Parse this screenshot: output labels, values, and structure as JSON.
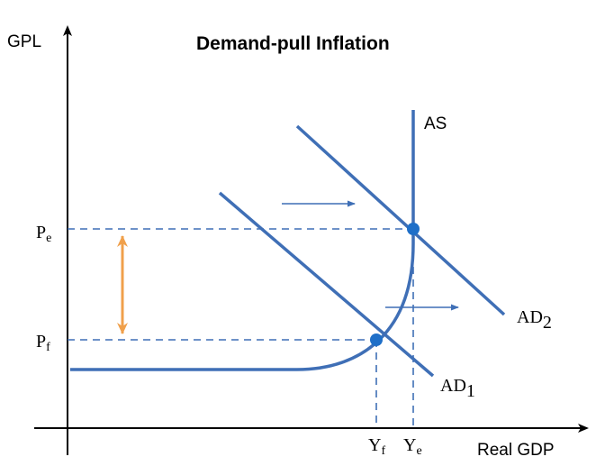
{
  "title": "Demand-pull Inflation",
  "axes": {
    "y_label": "GPL",
    "x_label": "Real GDP"
  },
  "curves": {
    "as": "AS",
    "ad1": {
      "base": "AD",
      "sub": "1"
    },
    "ad2": {
      "base": "AD",
      "sub": "2"
    }
  },
  "levels": {
    "pe": {
      "base": "P",
      "sub": "e"
    },
    "pf": {
      "base": "P",
      "sub": "f"
    },
    "ye": {
      "base": "Y",
      "sub": "e"
    },
    "yf": {
      "base": "Y",
      "sub": "f"
    }
  },
  "colors": {
    "curve": "#3f6fb6",
    "guide": "#3f6fb6",
    "point": "#1f6fc8",
    "inflation_arrow": "#f0a04b",
    "axis": "#000000"
  }
}
